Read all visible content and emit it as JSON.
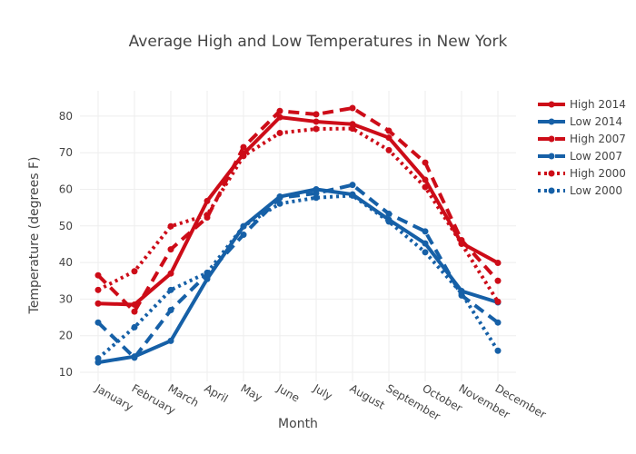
{
  "chart_data": {
    "type": "line",
    "title": "Average High and Low Temperatures in New York",
    "xlabel": "Month",
    "ylabel": "Temperature (degrees F)",
    "categories": [
      "January",
      "February",
      "March",
      "April",
      "May",
      "June",
      "July",
      "August",
      "September",
      "October",
      "November",
      "December"
    ],
    "yticks": [
      10,
      20,
      30,
      40,
      50,
      60,
      70,
      80
    ],
    "ylim": [
      8.5,
      88
    ],
    "grid": true,
    "legend_position": "top-right",
    "series": [
      {
        "name": "High 2014",
        "color": "#cd0c18",
        "dash": "solid",
        "values": [
          28.8,
          28.5,
          37.0,
          56.8,
          69.7,
          79.7,
          78.5,
          77.8,
          74.1,
          62.6,
          45.3,
          39.9
        ]
      },
      {
        "name": "Low 2014",
        "color": "#1660a7",
        "dash": "solid",
        "values": [
          12.7,
          14.3,
          18.6,
          35.5,
          49.9,
          58.0,
          60.0,
          58.6,
          51.7,
          45.2,
          32.2,
          29.1
        ]
      },
      {
        "name": "High 2007",
        "color": "#cd0c18",
        "dash": "dash",
        "values": [
          36.5,
          26.6,
          43.6,
          52.3,
          71.5,
          81.4,
          80.5,
          82.2,
          76.0,
          67.3,
          46.1,
          35.0
        ]
      },
      {
        "name": "Low 2007",
        "color": "#1660a7",
        "dash": "dash",
        "values": [
          23.6,
          14.0,
          27.0,
          36.8,
          47.6,
          57.7,
          58.9,
          61.2,
          53.3,
          48.5,
          31.0,
          23.6
        ]
      },
      {
        "name": "High 2000",
        "color": "#cd0c18",
        "dash": "dot",
        "values": [
          32.5,
          37.6,
          49.9,
          53.0,
          69.1,
          75.4,
          76.5,
          76.6,
          70.7,
          60.6,
          45.1,
          29.3
        ]
      },
      {
        "name": "Low 2000",
        "color": "#1660a7",
        "dash": "dot",
        "values": [
          13.8,
          22.3,
          32.5,
          37.2,
          49.9,
          56.1,
          57.7,
          58.3,
          51.2,
          42.8,
          31.6,
          15.9
        ]
      }
    ]
  }
}
